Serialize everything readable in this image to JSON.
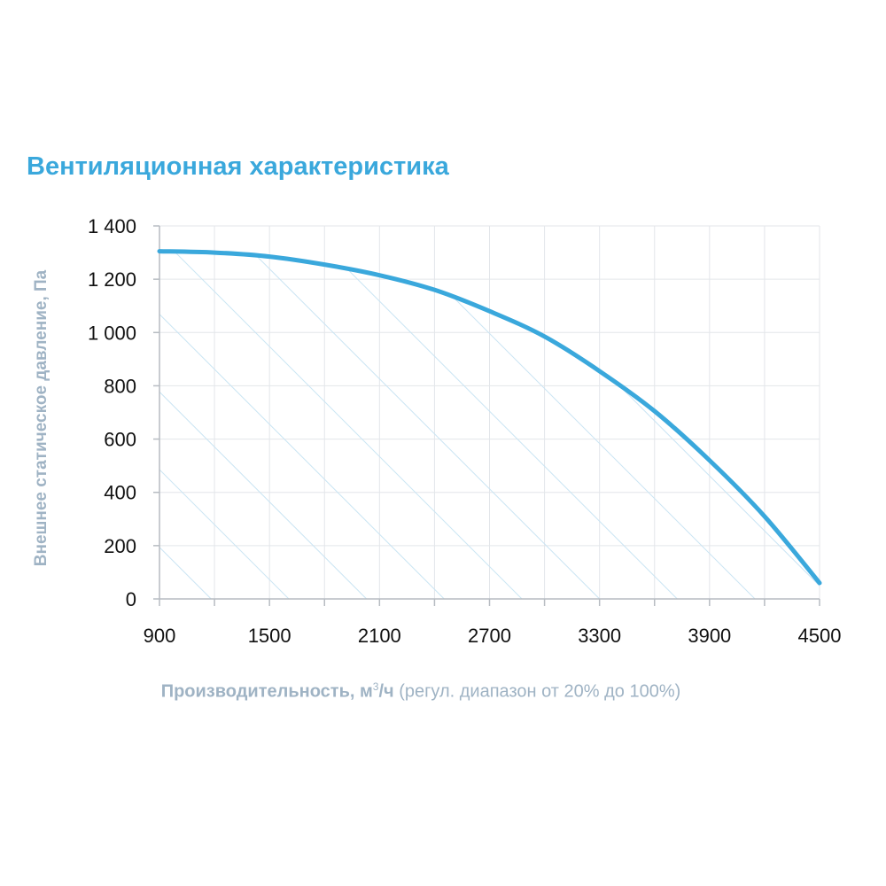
{
  "chart_data": {
    "type": "line",
    "title": "Вентиляционная характеристика",
    "ylabel": "Внешнее статическое давление, Па",
    "xlabel": {
      "main": "Производительность, м",
      "sup": "3",
      "unit": "/ч",
      "note": "(регул. диапазон от 20% до 100%)"
    },
    "xlim": [
      900,
      4500
    ],
    "ylim": [
      0,
      1400
    ],
    "x_ticks": [
      900,
      1500,
      2100,
      2700,
      3300,
      3900,
      4500
    ],
    "x_tick_labels": [
      "900",
      "1500",
      "2100",
      "2700",
      "3300",
      "3900",
      "4500"
    ],
    "y_ticks": [
      0,
      200,
      400,
      600,
      800,
      1000,
      1200,
      1400
    ],
    "y_tick_labels": [
      "0",
      "200",
      "400",
      "600",
      "800",
      "1 000",
      "1 200",
      "1 400"
    ],
    "x_minor_step": 300,
    "grid": true,
    "hatched_area": true,
    "series": [
      {
        "color": "#3aa8dc",
        "x": [
          900,
          1200,
          1500,
          1800,
          2100,
          2400,
          2700,
          3000,
          3300,
          3600,
          3900,
          4200,
          4500
        ],
        "y": [
          1305,
          1300,
          1285,
          1255,
          1215,
          1160,
          1080,
          985,
          855,
          705,
          520,
          310,
          60
        ]
      }
    ]
  }
}
